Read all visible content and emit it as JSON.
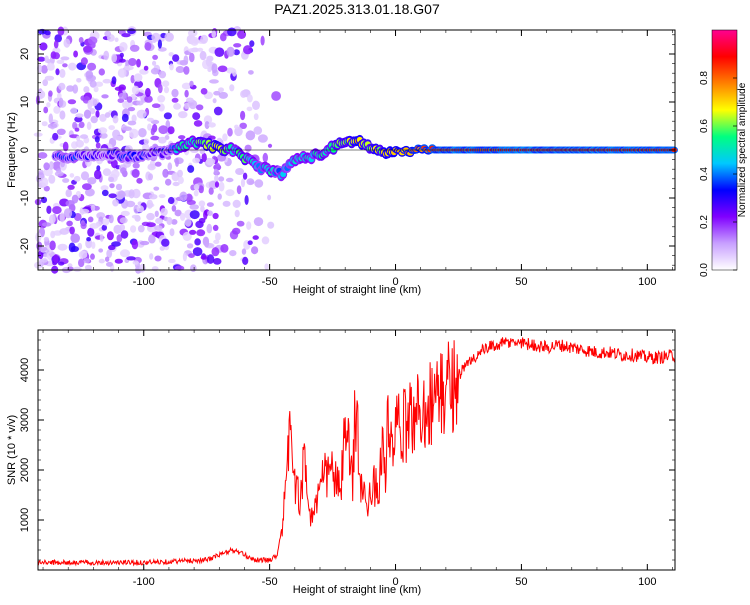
{
  "chart_data": [
    {
      "type": "heatmap",
      "title": "PAZ1.2025.313.01.18.G07",
      "xlabel": "Height of straight line (km)",
      "ylabel": "Frequency (Hz)",
      "xlim": [
        -142,
        111
      ],
      "ylim": [
        -25,
        25
      ],
      "xticks": [
        -100,
        -50,
        0,
        50,
        100
      ],
      "yticks": [
        -20,
        -10,
        0,
        10,
        20
      ],
      "colorbar": {
        "label": "Normalized spectral amplitude",
        "range": [
          0,
          1
        ],
        "ticks": [
          0.0,
          0.2,
          0.4,
          0.6,
          0.8
        ],
        "colors": [
          "#ffffff",
          "#c8a0ff",
          "#8000ff",
          "#0000ff",
          "#00c8ff",
          "#00ff80",
          "#ffff00",
          "#ff8000",
          "#ff0000",
          "#ff0090"
        ]
      },
      "ridge": {
        "x": [
          -135,
          -130,
          -125,
          -120,
          -115,
          -110,
          -105,
          -100,
          -95,
          -90,
          -85,
          -80,
          -75,
          -70,
          -65,
          -60,
          -55,
          -50,
          -45,
          -40,
          -35,
          -30,
          -25,
          -20,
          -15,
          -10,
          -5,
          0,
          10,
          20,
          30,
          40,
          50,
          60,
          70,
          80,
          90,
          100,
          110
        ],
        "y": [
          -1.0,
          -1.5,
          -1.0,
          -1.2,
          -0.8,
          -1.0,
          -1.5,
          -1.0,
          -0.5,
          -0.5,
          1.0,
          1.5,
          1.0,
          0.5,
          0.0,
          -1.5,
          -3.5,
          -4.0,
          -5.0,
          -2.0,
          -1.5,
          -1.0,
          0.5,
          1.5,
          2.0,
          0.5,
          -0.5,
          -0.5,
          0.0,
          0.0,
          0.0,
          0.0,
          0.0,
          0.0,
          0.0,
          0.0,
          0.0,
          0.0,
          0.0
        ],
        "amplitude": [
          0.3,
          0.35,
          0.3,
          0.25,
          0.25,
          0.3,
          0.3,
          0.3,
          0.25,
          0.3,
          0.5,
          0.55,
          0.6,
          0.7,
          0.5,
          0.55,
          0.45,
          0.5,
          0.4,
          0.45,
          0.5,
          0.5,
          0.55,
          0.6,
          0.7,
          0.6,
          0.65,
          0.7,
          0.8,
          0.85,
          0.85,
          0.85,
          0.88,
          0.85,
          0.85,
          0.85,
          0.85,
          0.85,
          0.85
        ]
      },
      "noise_region_x": [
        -142,
        -45
      ]
    },
    {
      "type": "line",
      "xlabel": "Height of straight line (km)",
      "ylabel": "SNR (10 * v/v)",
      "xlim": [
        -142,
        111
      ],
      "ylim": [
        0,
        4800
      ],
      "xticks": [
        -100,
        -50,
        0,
        50,
        100
      ],
      "yticks": [
        1000,
        2000,
        3000,
        4000
      ],
      "series": [
        {
          "name": "SNR",
          "color": "#ff0000",
          "x": [
            -142,
            -120,
            -100,
            -85,
            -75,
            -70,
            -65,
            -62,
            -58,
            -55,
            -50,
            -47,
            -45,
            -43,
            -42,
            -41,
            -40,
            -38,
            -36,
            -35,
            -34,
            -32,
            -30,
            -28,
            -25,
            -22,
            -20,
            -17,
            -16,
            -15,
            -14,
            -13,
            -12,
            -11,
            -10,
            -7,
            -5,
            -4,
            -3,
            -2,
            0,
            3,
            5,
            10,
            15,
            20,
            25,
            30,
            35,
            40,
            45,
            50,
            55,
            60,
            65,
            70,
            75,
            80,
            85,
            90,
            95,
            100,
            105,
            111
          ],
          "y": [
            150,
            150,
            150,
            180,
            200,
            300,
            400,
            350,
            250,
            200,
            200,
            300,
            900,
            1800,
            3400,
            2400,
            1600,
            1500,
            2200,
            1800,
            1000,
            1300,
            1600,
            1900,
            2000,
            1500,
            2800,
            1800,
            3400,
            2800,
            1500,
            1800,
            1200,
            900,
            1800,
            1600,
            2500,
            2000,
            2900,
            2300,
            2800,
            2800,
            3000,
            3200,
            3400,
            3600,
            3900,
            4200,
            4400,
            4500,
            4550,
            4550,
            4500,
            4450,
            4500,
            4450,
            4400,
            4350,
            4350,
            4300,
            4300,
            4250,
            4250,
            4300
          ]
        }
      ]
    }
  ]
}
